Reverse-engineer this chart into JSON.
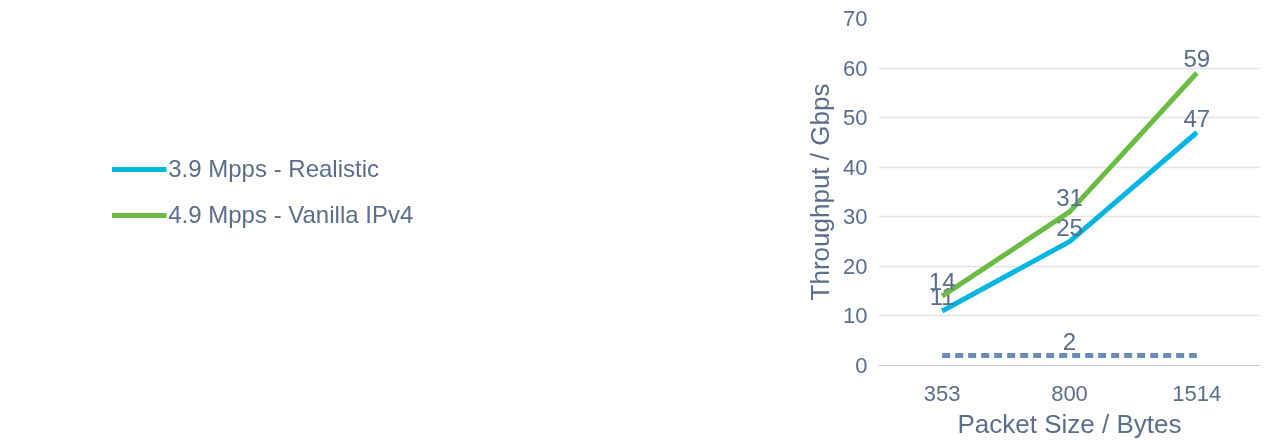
{
  "chart_data": {
    "type": "line",
    "xlabel": "Packet Size / Bytes",
    "ylabel": "Throughput / Gbps",
    "categories": [
      "353",
      "800",
      "1514"
    ],
    "ylim": [
      0,
      70
    ],
    "yticks": [
      0,
      10,
      20,
      30,
      40,
      50,
      60,
      70
    ],
    "grid": "y",
    "legend": "left",
    "series": [
      {
        "name": "3.9 Mpps - Realistic",
        "color": "#00b5e2",
        "values": [
          11,
          25,
          47
        ],
        "value_labels": [
          "11",
          "25",
          "47"
        ]
      },
      {
        "name": "4.9 Mpps - Vanilla IPv4",
        "color": "#6cbb44",
        "values": [
          14,
          31,
          59
        ],
        "value_labels": [
          "14",
          "31",
          "59"
        ]
      },
      {
        "color": "#6a8db5",
        "values": [
          2,
          2,
          2
        ],
        "value_labels": [
          null,
          "2",
          null
        ],
        "line_style": "dashed"
      }
    ]
  }
}
